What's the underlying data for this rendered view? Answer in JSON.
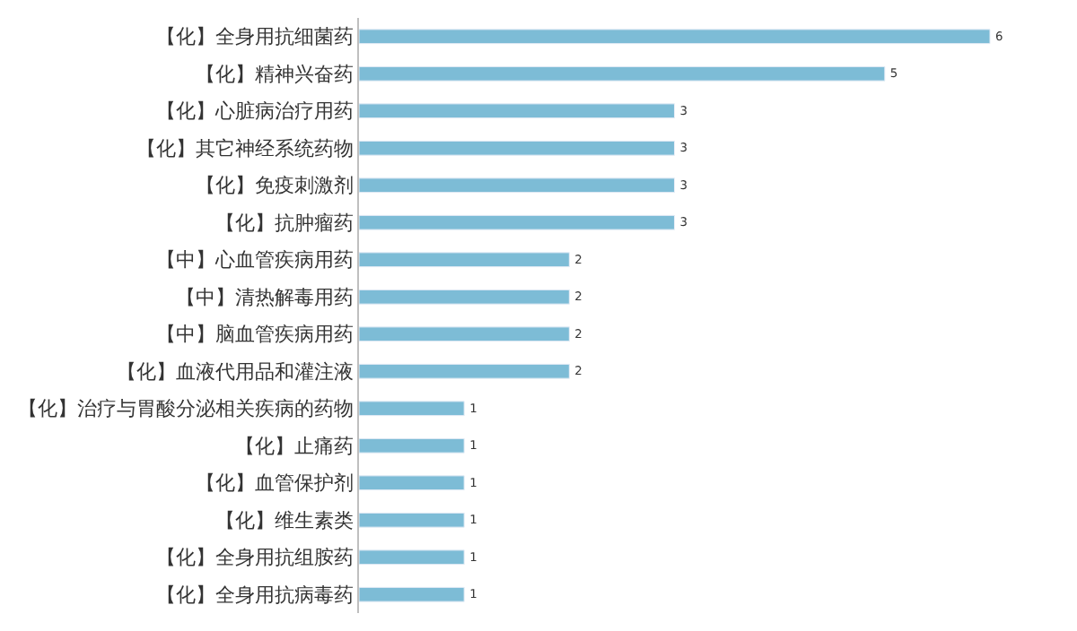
{
  "chart_data": {
    "type": "bar",
    "orientation": "horizontal",
    "data_labels": true,
    "legend": false,
    "tick_labels": "y",
    "color": "#7dbcd6",
    "categories": [
      "【化】全身用抗细菌药",
      "【化】精神兴奋药",
      "【化】心脏病治疗用药",
      "【化】其它神经系统药物",
      "【化】免疫刺激剂",
      "【化】抗肿瘤药",
      "【中】心血管疾病用药",
      "【中】清热解毒用药",
      "【中】脑血管疾病用药",
      "【化】血液代用品和灌注液",
      "【化】治疗与胃酸分泌相关疾病的药物",
      "【化】止痛药",
      "【化】血管保护剂",
      "【化】维生素类",
      "【化】全身用抗组胺药",
      "【化】全身用抗病毒药"
    ],
    "values": [
      6,
      5,
      3,
      3,
      3,
      3,
      2,
      2,
      2,
      2,
      1,
      1,
      1,
      1,
      1,
      1
    ]
  }
}
